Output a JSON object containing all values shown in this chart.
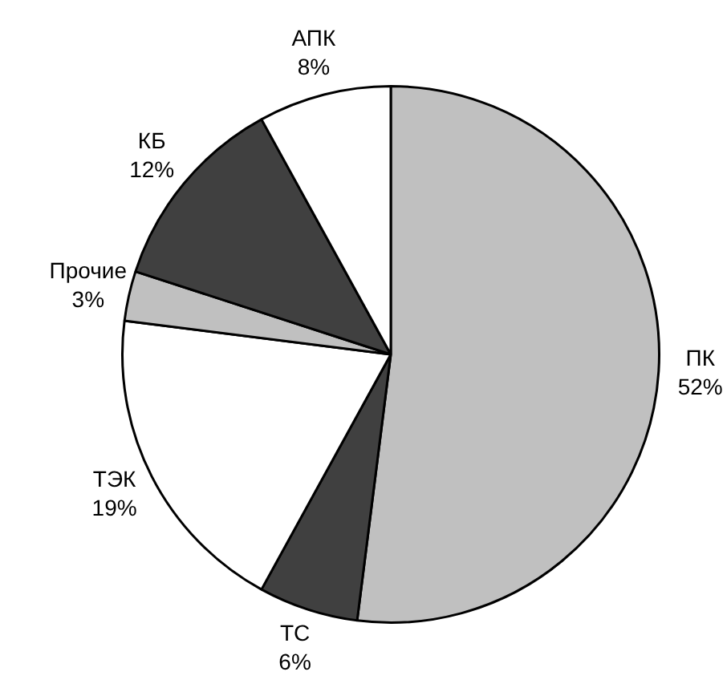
{
  "chart_data": {
    "type": "pie",
    "categories": [
      "ПК",
      "ТС",
      "ТЭК",
      "Прочие",
      "КБ",
      "АПК"
    ],
    "values": [
      52,
      6,
      19,
      3,
      12,
      8
    ],
    "value_labels": [
      "52%",
      "6%",
      "19%",
      "3%",
      "12%",
      "8%"
    ],
    "colors": [
      "#c0c0c0",
      "#404040",
      "#ffffff",
      "#c0c0c0",
      "#404040",
      "#ffffff"
    ],
    "legend": false
  }
}
